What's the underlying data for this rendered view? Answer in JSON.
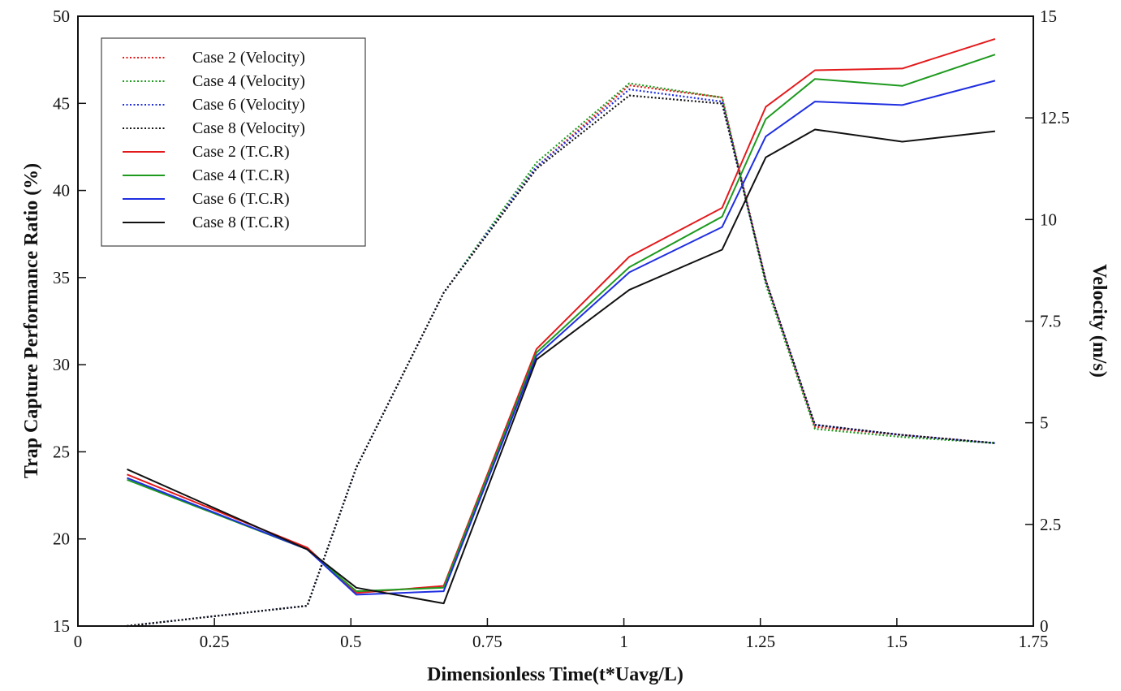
{
  "chart_data": {
    "type": "line",
    "xlabel": "Dimensionless Time(t*Uavg/L)",
    "ylabel": "Trap Capture Performance Ratio (%)",
    "y2label": "Velocity (m/s)",
    "xlim": [
      0,
      1.75
    ],
    "ylim": [
      15,
      50
    ],
    "y2lim": [
      0,
      15
    ],
    "x_ticks": [
      "0",
      "0.25",
      "0.5",
      "0.75",
      "1",
      "1.25",
      "1.5",
      "1.75"
    ],
    "y_ticks": [
      "15",
      "20",
      "25",
      "30",
      "35",
      "40",
      "45",
      "50"
    ],
    "y2_ticks": [
      "0",
      "2.5",
      "5",
      "7.5",
      "10",
      "12.5",
      "15"
    ],
    "grid": false,
    "legend_position": "top-left",
    "series": [
      {
        "name": "Case 2 (Velocity)",
        "axis": "right",
        "style": "dotted",
        "color": "#e31a1c",
        "x": [
          0.09,
          0.42,
          0.51,
          0.67,
          0.84,
          1.01,
          1.18,
          1.26,
          1.35,
          1.51,
          1.68
        ],
        "y": [
          0.0,
          0.5,
          3.9,
          8.2,
          11.3,
          13.3,
          13.0,
          8.5,
          4.9,
          4.7,
          4.5
        ]
      },
      {
        "name": "Case 4 (Velocity)",
        "axis": "right",
        "style": "dotted",
        "color": "#1e9a1e",
        "x": [
          0.09,
          0.42,
          0.51,
          0.67,
          0.84,
          1.01,
          1.18,
          1.26,
          1.35,
          1.51,
          1.68
        ],
        "y": [
          0.0,
          0.5,
          3.9,
          8.2,
          11.4,
          13.35,
          13.0,
          8.4,
          4.85,
          4.65,
          4.5
        ]
      },
      {
        "name": "Case 6 (Velocity)",
        "axis": "right",
        "style": "dotted",
        "color": "#1f2fe0",
        "x": [
          0.09,
          0.42,
          0.51,
          0.67,
          0.84,
          1.01,
          1.18,
          1.26,
          1.35,
          1.51,
          1.68
        ],
        "y": [
          0.0,
          0.5,
          3.9,
          8.2,
          11.3,
          13.2,
          12.9,
          8.5,
          4.95,
          4.7,
          4.5
        ]
      },
      {
        "name": "Case 8 (Velocity)",
        "axis": "right",
        "style": "dotted",
        "color": "#111111",
        "x": [
          0.09,
          0.42,
          0.51,
          0.67,
          0.84,
          1.01,
          1.18,
          1.26,
          1.35,
          1.51,
          1.68
        ],
        "y": [
          0.0,
          0.5,
          3.9,
          8.2,
          11.25,
          13.05,
          12.85,
          8.5,
          4.95,
          4.7,
          4.5
        ]
      },
      {
        "name": "Case 2 (T.C.R)",
        "axis": "left",
        "style": "solid",
        "color": "#e31a1c",
        "x": [
          0.09,
          0.42,
          0.51,
          0.67,
          0.84,
          1.01,
          1.18,
          1.26,
          1.35,
          1.51,
          1.68
        ],
        "y": [
          23.7,
          19.5,
          16.9,
          17.3,
          30.9,
          36.2,
          39.0,
          44.8,
          46.9,
          47.0,
          48.7
        ]
      },
      {
        "name": "Case 4 (T.C.R)",
        "axis": "left",
        "style": "solid",
        "color": "#1e9a1e",
        "x": [
          0.09,
          0.42,
          0.51,
          0.67,
          0.84,
          1.01,
          1.18,
          1.26,
          1.35,
          1.51,
          1.68
        ],
        "y": [
          23.4,
          19.4,
          17.0,
          17.2,
          30.7,
          35.6,
          38.5,
          44.1,
          46.4,
          46.0,
          47.8
        ]
      },
      {
        "name": "Case 6 (T.C.R)",
        "axis": "left",
        "style": "solid",
        "color": "#1f2fe0",
        "x": [
          0.09,
          0.42,
          0.51,
          0.67,
          0.84,
          1.01,
          1.18,
          1.26,
          1.35,
          1.51,
          1.68
        ],
        "y": [
          23.5,
          19.4,
          16.8,
          17.0,
          30.5,
          35.3,
          37.9,
          43.1,
          45.1,
          44.9,
          46.3
        ]
      },
      {
        "name": "Case 8 (T.C.R)",
        "axis": "left",
        "style": "solid",
        "color": "#111111",
        "x": [
          0.09,
          0.42,
          0.51,
          0.67,
          0.84,
          1.01,
          1.18,
          1.26,
          1.35,
          1.51,
          1.68
        ],
        "y": [
          24.0,
          19.4,
          17.2,
          16.3,
          30.3,
          34.3,
          36.6,
          41.9,
          43.5,
          42.8,
          43.4
        ]
      }
    ]
  }
}
